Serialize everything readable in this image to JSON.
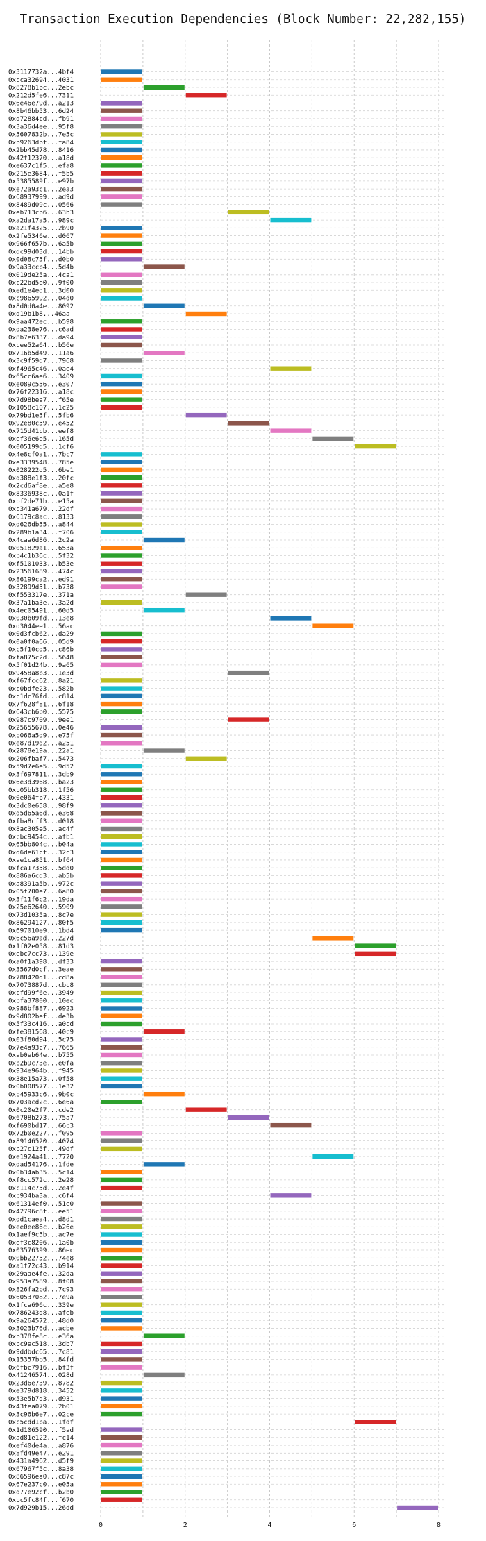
{
  "chart_data": {
    "type": "bar",
    "title": "Transaction Execution Dependencies (Block Number: 22,282,155)",
    "xlim": [
      0,
      8
    ],
    "xticks": [
      "0",
      "2",
      "4",
      "6",
      "8"
    ],
    "grid": true,
    "palette": {
      "blue": "#1f77b4",
      "orange": "#ff7f0e",
      "green": "#2ca02c",
      "red": "#d62728",
      "purple": "#9467bd",
      "brown": "#8c564b",
      "pink": "#e377c2",
      "gray": "#7f7f7f",
      "olive": "#bcbd22",
      "cyan": "#17becf"
    },
    "rows": [
      [
        "0x3117732a...4bf4",
        0,
        1,
        "blue"
      ],
      [
        "0xcca32694...4031",
        0,
        1,
        "orange"
      ],
      [
        "0x8278b1bc...2ebc",
        1,
        2,
        "green"
      ],
      [
        "0x212d5fe6...7311",
        2,
        3,
        "red"
      ],
      [
        "0x6e46e79d...a213",
        0,
        1,
        "purple"
      ],
      [
        "0x8b46bb53...6d24",
        0,
        1,
        "brown"
      ],
      [
        "0xd72884cd...fb91",
        0,
        1,
        "pink"
      ],
      [
        "0x3a36d4ee...95f8",
        0,
        1,
        "gray"
      ],
      [
        "0x5607832b...7e5c",
        0,
        1,
        "olive"
      ],
      [
        "0xb9263dbf...fa84",
        0,
        1,
        "cyan"
      ],
      [
        "0x2bb45d78...8416",
        0,
        1,
        "blue"
      ],
      [
        "0x42f12370...a18d",
        0,
        1,
        "orange"
      ],
      [
        "0xe637c1f5...efa8",
        0,
        1,
        "green"
      ],
      [
        "0x215e3684...f5b5",
        0,
        1,
        "red"
      ],
      [
        "0x5385589f...e97b",
        0,
        1,
        "purple"
      ],
      [
        "0xe72a93c1...2ea3",
        0,
        1,
        "brown"
      ],
      [
        "0x68937999...ad9d",
        0,
        1,
        "pink"
      ],
      [
        "0x8489d09c...0566",
        0,
        1,
        "gray"
      ],
      [
        "0xeb713cb6...63b3",
        3,
        4,
        "olive"
      ],
      [
        "0xa2da17a5...989c",
        4,
        5,
        "cyan"
      ],
      [
        "0xa21f4325...2b90",
        0,
        1,
        "blue"
      ],
      [
        "0x2fe5346e...d067",
        0,
        1,
        "orange"
      ],
      [
        "0x966f657b...6a5b",
        0,
        1,
        "green"
      ],
      [
        "0xdc99d03d...14bb",
        0,
        1,
        "red"
      ],
      [
        "0x0d08c75f...d0b0",
        0,
        1,
        "purple"
      ],
      [
        "0x9a33ccb4...5d4b",
        1,
        2,
        "brown"
      ],
      [
        "0x019de25a...4ca1",
        0,
        1,
        "pink"
      ],
      [
        "0xc22bd5e0...9f00",
        0,
        1,
        "gray"
      ],
      [
        "0xed1e4ed1...3d00",
        0,
        1,
        "olive"
      ],
      [
        "0xc9865992...04d0",
        0,
        1,
        "cyan"
      ],
      [
        "0x8d0d0a4e...8092",
        1,
        2,
        "blue"
      ],
      [
        "0xd19b1b8...46aa",
        2,
        3,
        "orange"
      ],
      [
        "0x9aa472ec...b598",
        0,
        1,
        "green"
      ],
      [
        "0xda238e76...c6ad",
        0,
        1,
        "red"
      ],
      [
        "0x8b7e6337...da94",
        0,
        1,
        "purple"
      ],
      [
        "0xcee52a64...b56e",
        0,
        1,
        "brown"
      ],
      [
        "0x716b5d49...11a6",
        1,
        2,
        "pink"
      ],
      [
        "0x3c9f59d7...7968",
        0,
        1,
        "gray"
      ],
      [
        "0xf4965c46...0ae4",
        4,
        5,
        "olive"
      ],
      [
        "0x65cc6ae6...3409",
        0,
        1,
        "cyan"
      ],
      [
        "0xe089c556...e307",
        0,
        1,
        "blue"
      ],
      [
        "0x76f22316...a18c",
        0,
        1,
        "orange"
      ],
      [
        "0x7d98bea7...f65e",
        0,
        1,
        "green"
      ],
      [
        "0x1058c107...1c25",
        0,
        1,
        "red"
      ],
      [
        "0x79bd1e5f...5fb6",
        2,
        3,
        "purple"
      ],
      [
        "0x92e80c59...e452",
        3,
        4,
        "brown"
      ],
      [
        "0x715d41cb...eef8",
        4,
        5,
        "pink"
      ],
      [
        "0xef36e6e5...165d",
        5,
        6,
        "gray"
      ],
      [
        "0x005199d5...1cf6",
        6,
        7,
        "olive"
      ],
      [
        "0x4e8cf0a1...7bc7",
        0,
        1,
        "cyan"
      ],
      [
        "0xe3339548...785e",
        0,
        1,
        "blue"
      ],
      [
        "0x028222d5...6be1",
        0,
        1,
        "orange"
      ],
      [
        "0xd388e1f3...20fc",
        0,
        1,
        "green"
      ],
      [
        "0x2cd6af8e...a5e8",
        0,
        1,
        "red"
      ],
      [
        "0x8336938c...0a1f",
        0,
        1,
        "purple"
      ],
      [
        "0xbf2de71b...e15a",
        0,
        1,
        "brown"
      ],
      [
        "0xc341a679...22df",
        0,
        1,
        "pink"
      ],
      [
        "0x6179c8ac...8133",
        0,
        1,
        "gray"
      ],
      [
        "0xd626db55...a844",
        0,
        1,
        "olive"
      ],
      [
        "0x289b1a34...f706",
        0,
        1,
        "cyan"
      ],
      [
        "0x4caa6d86...2c2a",
        1,
        2,
        "blue"
      ],
      [
        "0x051829a1...653a",
        0,
        1,
        "orange"
      ],
      [
        "0xb4c1b36c...5f32",
        0,
        1,
        "green"
      ],
      [
        "0xf5101033...b53e",
        0,
        1,
        "red"
      ],
      [
        "0x23561689...474c",
        0,
        1,
        "purple"
      ],
      [
        "0x86199ca2...ed91",
        0,
        1,
        "brown"
      ],
      [
        "0x32899d51...b738",
        0,
        1,
        "pink"
      ],
      [
        "0xf553317e...371a",
        2,
        3,
        "gray"
      ],
      [
        "0x37a1ba3e...3a2d",
        0,
        1,
        "olive"
      ],
      [
        "0x4ec05491...60d5",
        1,
        2,
        "cyan"
      ],
      [
        "0x030b09fd...13e8",
        4,
        5,
        "blue"
      ],
      [
        "0xd3044ee1...56ac",
        5,
        6,
        "orange"
      ],
      [
        "0x0d3fcb62...da29",
        0,
        1,
        "green"
      ],
      [
        "0x0a0f0a66...05d9",
        0,
        1,
        "red"
      ],
      [
        "0xc5f10cd5...c86b",
        0,
        1,
        "purple"
      ],
      [
        "0xfa875c2d...5648",
        0,
        1,
        "brown"
      ],
      [
        "0x5f01d24b...9a65",
        0,
        1,
        "pink"
      ],
      [
        "0x9458a8b3...1e3d",
        3,
        4,
        "gray"
      ],
      [
        "0xf67fcc62...8a21",
        0,
        1,
        "olive"
      ],
      [
        "0xc0bdfe23...582b",
        0,
        1,
        "cyan"
      ],
      [
        "0xc1dc76fd...c814",
        0,
        1,
        "blue"
      ],
      [
        "0x7f628f81...6f18",
        0,
        1,
        "orange"
      ],
      [
        "0x643cb6b0...5575",
        0,
        1,
        "green"
      ],
      [
        "0x987c9709...9ee1",
        3,
        4,
        "red"
      ],
      [
        "0x25655678...0e46",
        0,
        1,
        "purple"
      ],
      [
        "0xb066a5d9...e75f",
        0,
        1,
        "brown"
      ],
      [
        "0xe87d19d2...a251",
        0,
        1,
        "pink"
      ],
      [
        "0x2878e19a...22a1",
        1,
        2,
        "gray"
      ],
      [
        "0x206fbaf7...5473",
        2,
        3,
        "olive"
      ],
      [
        "0x59d7e6e5...9d52",
        0,
        1,
        "cyan"
      ],
      [
        "0x3f697811...3db9",
        0,
        1,
        "blue"
      ],
      [
        "0x6e3d3968...ba23",
        0,
        1,
        "orange"
      ],
      [
        "0xb05bb318...1f56",
        0,
        1,
        "green"
      ],
      [
        "0x0e064fb7...4331",
        0,
        1,
        "red"
      ],
      [
        "0x3dc0e658...98f9",
        0,
        1,
        "purple"
      ],
      [
        "0xd5d65a6d...e368",
        0,
        1,
        "brown"
      ],
      [
        "0xfba8cff3...d018",
        0,
        1,
        "pink"
      ],
      [
        "0x8ac305e5...ac4f",
        0,
        1,
        "gray"
      ],
      [
        "0xcbc9454c...afb1",
        0,
        1,
        "olive"
      ],
      [
        "0x65bb804c...b04a",
        0,
        1,
        "cyan"
      ],
      [
        "0xd6de61cf...32c3",
        0,
        1,
        "blue"
      ],
      [
        "0xae1ca851...bf64",
        0,
        1,
        "orange"
      ],
      [
        "0xfca17358...5dd0",
        0,
        1,
        "green"
      ],
      [
        "0x886a6cd3...ab5b",
        0,
        1,
        "red"
      ],
      [
        "0xa8391a5b...972c",
        0,
        1,
        "purple"
      ],
      [
        "0x05f700e7...6a80",
        0,
        1,
        "brown"
      ],
      [
        "0x3f11f6c2...19da",
        0,
        1,
        "pink"
      ],
      [
        "0x25e62640...5909",
        0,
        1,
        "gray"
      ],
      [
        "0x73d1035a...8c7e",
        0,
        1,
        "olive"
      ],
      [
        "0x86294127...80f5",
        0,
        1,
        "cyan"
      ],
      [
        "0x697010e9...1bd4",
        0,
        1,
        "blue"
      ],
      [
        "0x6c56a9ad...227d",
        5,
        6,
        "orange"
      ],
      [
        "0x1f02e058...81d3",
        6,
        7,
        "green"
      ],
      [
        "0xebc7cc73...139e",
        6,
        7,
        "red"
      ],
      [
        "0xa0f1a398...df33",
        0,
        1,
        "purple"
      ],
      [
        "0x3567d0cf...3eae",
        0,
        1,
        "brown"
      ],
      [
        "0x788420d1...cd8a",
        0,
        1,
        "pink"
      ],
      [
        "0x7073887d...cbc8",
        0,
        1,
        "gray"
      ],
      [
        "0xcfd99f6e...3949",
        0,
        1,
        "olive"
      ],
      [
        "0xbfa37800...10ec",
        0,
        1,
        "cyan"
      ],
      [
        "0x988bf887...6923",
        0,
        1,
        "blue"
      ],
      [
        "0x9d802bef...de3b",
        0,
        1,
        "orange"
      ],
      [
        "0x5f33c416...a0cd",
        0,
        1,
        "green"
      ],
      [
        "0xfe381568...40c9",
        1,
        2,
        "red"
      ],
      [
        "0x03f80d94...5c75",
        0,
        1,
        "purple"
      ],
      [
        "0x7e4a93c7...7665",
        0,
        1,
        "brown"
      ],
      [
        "0xab0eb64e...b755",
        0,
        1,
        "pink"
      ],
      [
        "0xb2b9c73e...e0fa",
        0,
        1,
        "gray"
      ],
      [
        "0x934e964b...f945",
        0,
        1,
        "olive"
      ],
      [
        "0x38e15a73...0f58",
        0,
        1,
        "cyan"
      ],
      [
        "0x0b008577...1e32",
        0,
        1,
        "blue"
      ],
      [
        "0xb45933c6...9b0c",
        1,
        2,
        "orange"
      ],
      [
        "0x703acd2c...6e6a",
        0,
        1,
        "green"
      ],
      [
        "0x0c20e2f7...cde2",
        2,
        3,
        "red"
      ],
      [
        "0x6708b273...75a7",
        3,
        4,
        "purple"
      ],
      [
        "0xf690bd17...66c3",
        4,
        5,
        "brown"
      ],
      [
        "0x72b0e227...f095",
        0,
        1,
        "pink"
      ],
      [
        "0x89146520...4074",
        0,
        1,
        "gray"
      ],
      [
        "0xb27c125f...49df",
        0,
        1,
        "olive"
      ],
      [
        "0xe1924a41...7720",
        5,
        6,
        "cyan"
      ],
      [
        "0xdad54176...1fde",
        1,
        2,
        "blue"
      ],
      [
        "0x0b34ab35...5c14",
        0,
        1,
        "orange"
      ],
      [
        "0xf8cc572c...2e28",
        0,
        1,
        "green"
      ],
      [
        "0xc114c75d...2e4f",
        0,
        1,
        "red"
      ],
      [
        "0xc934ba3a...c6f4",
        4,
        5,
        "purple"
      ],
      [
        "0x61314ef0...51e0",
        0,
        1,
        "brown"
      ],
      [
        "0x42796c8f...ee51",
        0,
        1,
        "pink"
      ],
      [
        "0xdd1caea4...d8d1",
        0,
        1,
        "gray"
      ],
      [
        "0xee0ee86c...b26e",
        0,
        1,
        "olive"
      ],
      [
        "0x1aef9c5b...ac7e",
        0,
        1,
        "cyan"
      ],
      [
        "0xef3c8206...1a0b",
        0,
        1,
        "blue"
      ],
      [
        "0x03576399...86ec",
        0,
        1,
        "orange"
      ],
      [
        "0x0bb22752...74e8",
        0,
        1,
        "green"
      ],
      [
        "0xa1f72c43...b914",
        0,
        1,
        "red"
      ],
      [
        "0x29aae4fe...32da",
        0,
        1,
        "purple"
      ],
      [
        "0x953a7589...8f08",
        0,
        1,
        "brown"
      ],
      [
        "0x826fa2bd...7c93",
        0,
        1,
        "pink"
      ],
      [
        "0x60537082...7e9a",
        0,
        1,
        "gray"
      ],
      [
        "0x1fca696c...339e",
        0,
        1,
        "olive"
      ],
      [
        "0x786243d8...afeb",
        0,
        1,
        "cyan"
      ],
      [
        "0x9a264572...48d0",
        0,
        1,
        "blue"
      ],
      [
        "0x3023b76d...acbe",
        0,
        1,
        "orange"
      ],
      [
        "0xb378fe8c...e36a",
        1,
        2,
        "green"
      ],
      [
        "0xbc9ec518...3db7",
        0,
        1,
        "red"
      ],
      [
        "0x9ddbdc65...7c81",
        0,
        1,
        "purple"
      ],
      [
        "0x15357bb5...84fd",
        0,
        1,
        "brown"
      ],
      [
        "0x6fbc7916...bf3f",
        0,
        1,
        "pink"
      ],
      [
        "0x41246574...028d",
        1,
        2,
        "gray"
      ],
      [
        "0x23d6e739...8782",
        0,
        1,
        "olive"
      ],
      [
        "0xe379d818...3452",
        0,
        1,
        "cyan"
      ],
      [
        "0x53e5b7d3...d931",
        0,
        1,
        "blue"
      ],
      [
        "0x43fea079...2b01",
        0,
        1,
        "orange"
      ],
      [
        "0x3c96b6e7...02ce",
        0,
        1,
        "green"
      ],
      [
        "0xc5cdd1ba...1fdf",
        6,
        7,
        "red"
      ],
      [
        "0x1d106590...f5ad",
        0,
        1,
        "purple"
      ],
      [
        "0xad81e122...fc14",
        0,
        1,
        "brown"
      ],
      [
        "0xef40de4a...a876",
        0,
        1,
        "pink"
      ],
      [
        "0x8fd49e47...e291",
        0,
        1,
        "gray"
      ],
      [
        "0x431a4962...d5f9",
        0,
        1,
        "olive"
      ],
      [
        "0x67967f5c...8a38",
        0,
        1,
        "cyan"
      ],
      [
        "0x86596ea0...c87c",
        0,
        1,
        "blue"
      ],
      [
        "0x67e237c0...e05a",
        0,
        1,
        "orange"
      ],
      [
        "0xd77e92cf...b2b0",
        0,
        1,
        "green"
      ],
      [
        "0xbc5fc84f...f670",
        0,
        1,
        "red"
      ],
      [
        "0x7d929b15...26dd",
        7,
        8,
        "purple"
      ]
    ]
  }
}
